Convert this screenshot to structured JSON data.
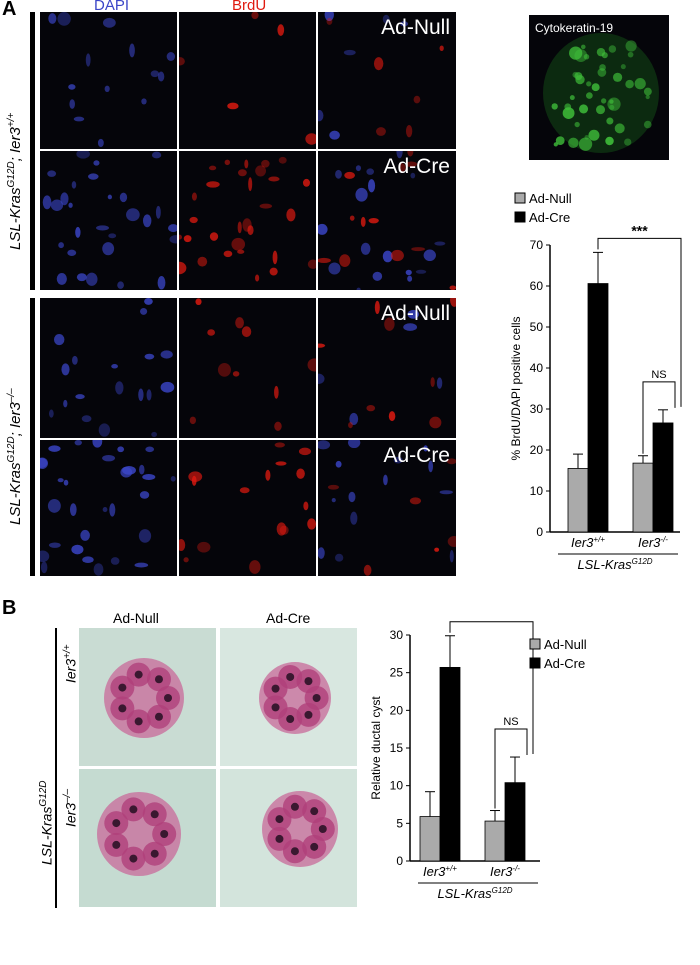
{
  "panel_a": {
    "letter": "A",
    "channels": {
      "dapi": "DAPI",
      "brdu": "BrdU"
    },
    "genotype_top": {
      "main": "LSL-Kras",
      "sup1": "G12D",
      "mid": "; Ier3",
      "sup2": "+/+"
    },
    "genotype_bottom": {
      "main": "LSL-Kras",
      "sup1": "G12D",
      "mid": "; Ier3",
      "sup2": "–/–"
    },
    "conditions": [
      "Ad-Null",
      "Ad-Cre",
      "Ad-Null",
      "Ad-Cre"
    ],
    "inset_label": "Cytokeratin-19",
    "colors": {
      "dapi": "#3b46c8",
      "brdu": "#e01a10",
      "ck19": "#3fbf3a"
    }
  },
  "panel_b": {
    "letter": "B",
    "col_labels": [
      "Ad-Null",
      "Ad-Cre"
    ],
    "row_labels": [
      "Ier3+/+",
      "Ier3–/–"
    ],
    "row_label_parts": [
      {
        "main": "Ier3",
        "sup": "+/+"
      },
      {
        "main": "Ier3",
        "sup": "–/–"
      }
    ],
    "genotype": {
      "main": "LSL-Kras",
      "sup": "G12D"
    }
  },
  "chart_data": [
    {
      "type": "bar",
      "categories": [
        "Ier3+/+",
        "Ier3–/–"
      ],
      "category_parts": [
        {
          "main": "Ier3",
          "sup": "+/+"
        },
        {
          "main": "Ier3",
          "sup": "-/-"
        }
      ],
      "group_label": {
        "main": "LSL-Kras",
        "sup": "G12D"
      },
      "series": [
        {
          "name": "Ad-Null",
          "values": [
            15.5,
            16.8
          ],
          "errors": [
            3.5,
            1.8
          ],
          "color": "#aaaaaa"
        },
        {
          "name": "Ad-Cre",
          "values": [
            60.6,
            26.6
          ],
          "errors": [
            7.6,
            3.2
          ],
          "color": "#000000"
        }
      ],
      "ylabel": "% BrdU/DAPI positive cells",
      "ylim": [
        0,
        70
      ],
      "yticks": [
        0,
        10,
        20,
        30,
        40,
        50,
        60,
        70
      ],
      "significance": [
        {
          "label": "***",
          "between": "Ad-Cre across genotypes"
        },
        {
          "label": "NS",
          "between": "Ier3–/– Ad-Null vs Ad-Cre"
        }
      ],
      "legend_position": "top-left"
    },
    {
      "type": "bar",
      "categories": [
        "Ier3+/+",
        "Ier3–/–"
      ],
      "category_parts": [
        {
          "main": "Ier3",
          "sup": "+/+"
        },
        {
          "main": "Ier3",
          "sup": "-/-"
        }
      ],
      "group_label": {
        "main": "LSL-Kras",
        "sup": "G12D"
      },
      "series": [
        {
          "name": "Ad-Null",
          "values": [
            5.9,
            5.3
          ],
          "errors": [
            3.3,
            1.4
          ],
          "color": "#aaaaaa"
        },
        {
          "name": "Ad-Cre",
          "values": [
            25.7,
            10.4
          ],
          "errors": [
            4.2,
            3.4
          ],
          "color": "#000000"
        }
      ],
      "ylabel": "Relative ductal cyst",
      "ylim": [
        0,
        30
      ],
      "yticks": [
        0,
        5,
        10,
        15,
        20,
        25,
        30
      ],
      "significance": [
        {
          "label": "***",
          "between": "Ad-Cre across genotypes"
        },
        {
          "label": "NS",
          "between": "Ier3–/– Ad-Null vs Ad-Cre"
        }
      ],
      "legend_position": "right"
    }
  ]
}
